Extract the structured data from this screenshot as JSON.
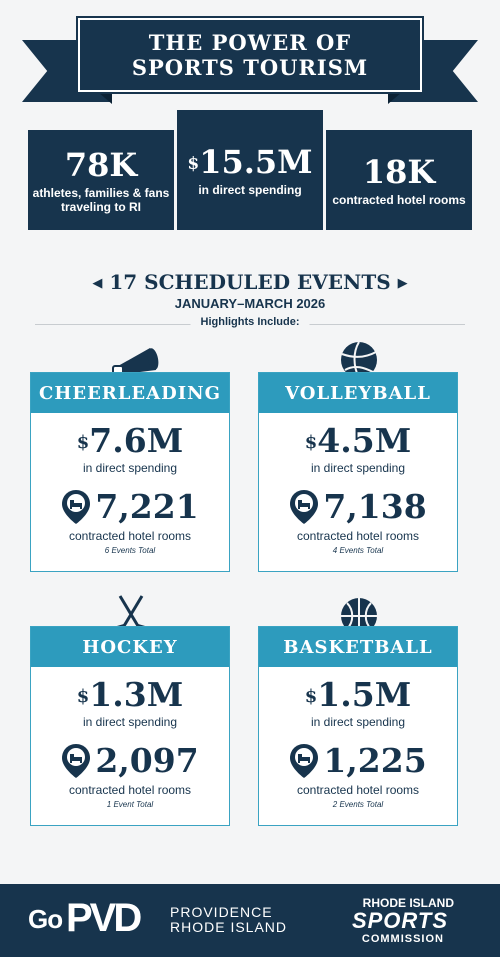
{
  "header": {
    "line1": "THE POWER OF",
    "line2": "SPORTS TOURISM"
  },
  "top_stats": [
    {
      "value": "78K",
      "caption": "athletes, families & fans traveling to RI"
    },
    {
      "value": "15.5M",
      "prefix": "$",
      "caption": "in direct spending"
    },
    {
      "value": "18K",
      "caption": "contracted hotel rooms"
    }
  ],
  "events": {
    "title": "17 SCHEDULED EVENTS",
    "dates": "JANUARY–MARCH 2026",
    "highlights": "Highlights Include:"
  },
  "sports": [
    {
      "name": "CHEERLEADING",
      "icon": "megaphone-icon",
      "spending": "7.6M",
      "spending_label": "in direct spending",
      "hotel_rooms": "7,221",
      "hotel_label": "contracted hotel rooms",
      "events_total": "6 Events Total"
    },
    {
      "name": "VOLLEYBALL",
      "icon": "volleyball-icon",
      "spending": "4.5M",
      "spending_label": "in direct spending",
      "hotel_rooms": "7,138",
      "hotel_label": "contracted hotel rooms",
      "events_total": "4 Events Total"
    },
    {
      "name": "HOCKEY",
      "icon": "hockey-sticks-icon",
      "spending": "1.3M",
      "spending_label": "in direct spending",
      "hotel_rooms": "2,097",
      "hotel_label": "contracted hotel rooms",
      "events_total": "1 Event Total"
    },
    {
      "name": "BASKETBALL",
      "icon": "basketball-icon",
      "spending": "1.5M",
      "spending_label": "in direct spending",
      "hotel_rooms": "1,225",
      "hotel_label": "contracted hotel rooms",
      "events_total": "2 Events Total"
    }
  ],
  "currency_symbol": "$",
  "footer": {
    "go": "Go",
    "pvd": "PVD",
    "city_line1": "PROVIDENCE",
    "city_line2": "RHODE ISLAND",
    "ri_line1": "RHODE ISLAND",
    "ri_line2": "SPORTS",
    "ri_line3": "COMMISSION"
  },
  "colors": {
    "navy": "#17344d",
    "teal": "#2d9bbd",
    "background": "#f4f5f6"
  }
}
